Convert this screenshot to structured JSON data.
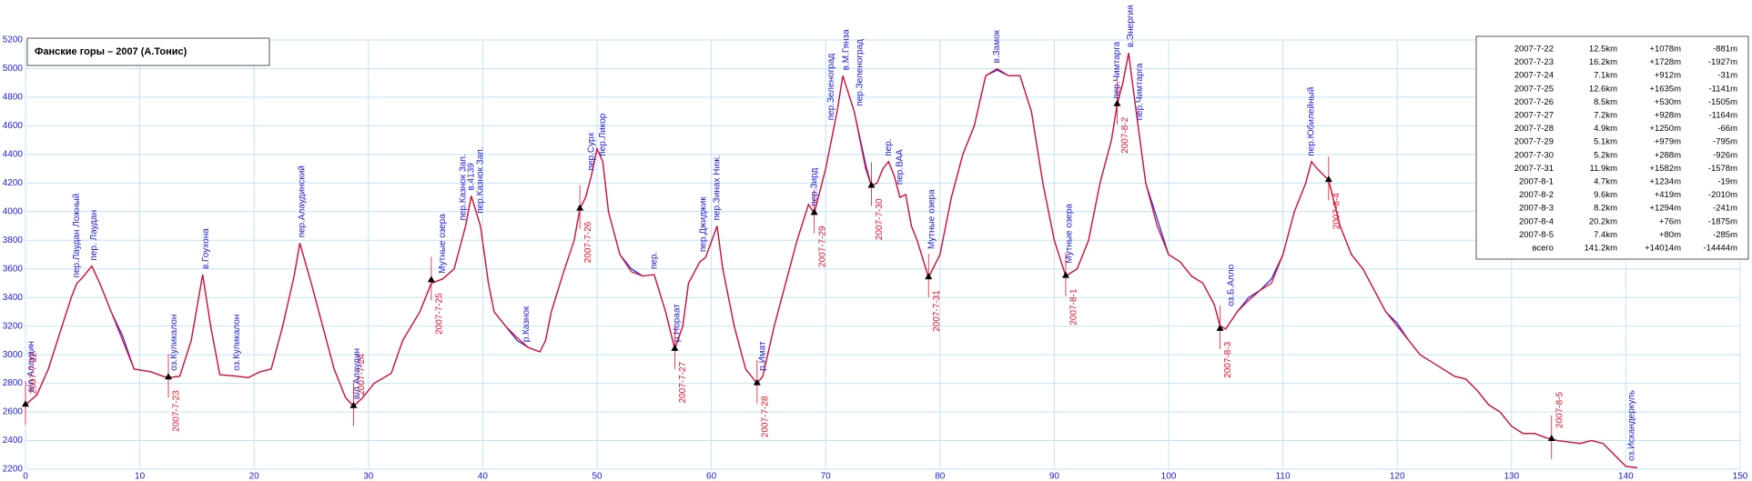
{
  "chart_data": {
    "type": "line",
    "title": "Фанские горы – 2007 (А.Тонис)",
    "x": [
      0,
      1,
      2,
      3,
      4,
      4.5,
      5,
      5.8,
      6.5,
      7.5,
      8.5,
      9.5,
      11,
      12,
      12.5,
      13.5,
      14.5,
      15.5,
      16.2,
      17,
      18.5,
      19.5,
      20.5,
      21.5,
      22.5,
      23.5,
      24,
      25,
      26,
      27,
      28,
      28.7,
      29.5,
      30.5,
      32,
      33,
      34.5,
      35.5,
      36.5,
      37.5,
      38.5,
      39,
      39.8,
      40.5,
      41,
      42,
      43,
      44,
      45,
      45.5,
      46,
      47,
      48,
      48.5,
      49,
      49.5,
      50,
      50.5,
      51,
      52,
      53,
      54,
      55,
      56,
      56.8,
      57.5,
      58,
      59,
      59.5,
      60.5,
      61,
      62,
      63,
      64,
      64.5,
      65.5,
      66.5,
      67.5,
      68.5,
      69,
      70,
      71,
      71.5,
      72.5,
      73.5,
      74,
      74.5,
      75,
      75.5,
      76,
      76.5,
      77,
      77.5,
      78,
      79,
      80,
      81,
      82,
      83,
      84,
      85,
      86,
      87,
      88,
      89,
      90,
      91,
      92,
      93,
      94,
      95,
      95.5,
      96,
      96.5,
      97,
      97.5,
      98,
      99,
      100,
      101,
      102,
      103,
      104,
      104.5,
      105,
      106,
      107,
      108,
      109,
      110,
      111,
      112,
      112.5,
      113,
      114,
      115,
      116,
      117,
      118,
      119,
      120,
      121,
      122,
      123,
      124,
      125,
      126,
      127,
      128,
      129,
      130,
      131,
      132,
      133,
      134,
      135,
      136,
      137,
      138,
      139,
      140,
      141
    ],
    "series": [
      {
        "color": "#2a2ae0",
        "values": [
          2650,
          2720,
          2900,
          3150,
          3400,
          3500,
          3540,
          3620,
          3500,
          3300,
          3130,
          2900,
          2880,
          2850,
          2840,
          2850,
          3100,
          3560,
          3200,
          2860,
          2850,
          2840,
          2880,
          2900,
          3200,
          3550,
          3780,
          3500,
          3200,
          2900,
          2700,
          2640,
          2700,
          2800,
          2870,
          3100,
          3300,
          3500,
          3530,
          3600,
          3900,
          4110,
          3900,
          3500,
          3300,
          3200,
          3100,
          3050,
          3020,
          3100,
          3300,
          3560,
          3800,
          4020,
          4100,
          4250,
          4440,
          4350,
          4000,
          3700,
          3600,
          3550,
          3560,
          3300,
          3040,
          3200,
          3500,
          3650,
          3680,
          3900,
          3600,
          3200,
          2900,
          2800,
          2850,
          3200,
          3500,
          3800,
          4050,
          3990,
          4300,
          4700,
          4950,
          4700,
          4330,
          4180,
          4200,
          4300,
          4350,
          4250,
          4100,
          4120,
          3900,
          3800,
          3540,
          3700,
          4100,
          4400,
          4600,
          4950,
          4990,
          4950,
          4950,
          4700,
          4200,
          3800,
          3550,
          3600,
          3800,
          4200,
          4500,
          4750,
          4900,
          5110,
          4800,
          4500,
          4200,
          3950,
          3700,
          3650,
          3550,
          3500,
          3350,
          3200,
          3180,
          3300,
          3400,
          3450,
          3530,
          3700,
          4000,
          4200,
          4350,
          4300,
          4220,
          3900,
          3700,
          3600,
          3450,
          3300,
          3220,
          3100,
          3000,
          2950,
          2900,
          2850,
          2830,
          2750,
          2650,
          2600,
          2500,
          2450,
          2450,
          2420,
          2400,
          2390,
          2380,
          2400,
          2380,
          2300,
          2220,
          2210
        ]
      },
      {
        "color": "#e0102a",
        "values": [
          2650,
          2720,
          2900,
          3150,
          3400,
          3500,
          3540,
          3620,
          3500,
          3300,
          3100,
          2900,
          2880,
          2850,
          2840,
          2850,
          3100,
          3560,
          3200,
          2860,
          2850,
          2840,
          2880,
          2900,
          3200,
          3550,
          3780,
          3500,
          3200,
          2900,
          2700,
          2640,
          2700,
          2800,
          2870,
          3100,
          3300,
          3500,
          3530,
          3600,
          3900,
          4110,
          3900,
          3500,
          3300,
          3200,
          3120,
          3050,
          3020,
          3100,
          3300,
          3560,
          3800,
          4020,
          4100,
          4250,
          4440,
          4350,
          4000,
          3700,
          3580,
          3550,
          3560,
          3300,
          3040,
          3200,
          3500,
          3650,
          3680,
          3900,
          3600,
          3200,
          2900,
          2800,
          2850,
          3200,
          3500,
          3800,
          4050,
          3990,
          4300,
          4700,
          4950,
          4700,
          4300,
          4180,
          4200,
          4300,
          4350,
          4250,
          4100,
          4120,
          3900,
          3800,
          3540,
          3700,
          4100,
          4400,
          4600,
          4950,
          5000,
          4950,
          4950,
          4700,
          4200,
          3800,
          3550,
          3600,
          3800,
          4200,
          4500,
          4750,
          4900,
          5110,
          4800,
          4500,
          4200,
          3900,
          3700,
          3650,
          3550,
          3500,
          3350,
          3200,
          3180,
          3300,
          3380,
          3450,
          3500,
          3700,
          4000,
          4200,
          4350,
          4300,
          4220,
          3900,
          3700,
          3600,
          3450,
          3300,
          3200,
          3100,
          3000,
          2950,
          2900,
          2850,
          2830,
          2750,
          2650,
          2600,
          2500,
          2450,
          2450,
          2420,
          2400,
          2390,
          2380,
          2400,
          2380,
          2300,
          2220,
          2210
        ]
      }
    ],
    "xlim": [
      0,
      150
    ],
    "xticks": [
      0,
      10,
      20,
      30,
      40,
      50,
      60,
      70,
      80,
      90,
      100,
      110,
      120,
      130,
      140,
      150
    ],
    "ylim": [
      2200,
      5200
    ],
    "yticks": [
      2200,
      2400,
      2600,
      2800,
      3000,
      3200,
      3400,
      3600,
      3800,
      4000,
      4200,
      4400,
      4600,
      4800,
      5000,
      5200
    ],
    "grid": true,
    "annotations": [
      {
        "x": 0.5,
        "y": 2700,
        "label": "в/л Алаудин"
      },
      {
        "x": 4.5,
        "y": 3500,
        "label": "пер.Лаудан Ложный"
      },
      {
        "x": 6,
        "y": 3620,
        "label": "пер. Лаудан"
      },
      {
        "x": 13,
        "y": 2850,
        "label": "оз.Куликалон"
      },
      {
        "x": 15.8,
        "y": 3560,
        "label": "в.Гоухона"
      },
      {
        "x": 18.5,
        "y": 2850,
        "label": "оз.Куликалон"
      },
      {
        "x": 24.2,
        "y": 3780,
        "label": "пер.Алаудинский"
      },
      {
        "x": 29,
        "y": 2650,
        "label": "в/л Алаудин"
      },
      {
        "x": 36.5,
        "y": 3530,
        "label": "Мутные озера"
      },
      {
        "x": 38.3,
        "y": 3900,
        "label": "пер.Казнок Зап."
      },
      {
        "x": 39,
        "y": 4110,
        "label": "в.4139"
      },
      {
        "x": 39.8,
        "y": 3950,
        "label": "пер.Казнок Зап."
      },
      {
        "x": 43.8,
        "y": 3050,
        "label": "р.Казнок"
      },
      {
        "x": 49.5,
        "y": 4250,
        "label": "пер.Сурх"
      },
      {
        "x": 50.5,
        "y": 4350,
        "label": "пер.Ликор"
      },
      {
        "x": 55,
        "y": 3560,
        "label": "пер."
      },
      {
        "x": 57,
        "y": 3050,
        "label": "р.Нораат"
      },
      {
        "x": 59.3,
        "y": 3680,
        "label": "пер.Джиджик"
      },
      {
        "x": 60.5,
        "y": 3900,
        "label": "пер.Зинах Ниж."
      },
      {
        "x": 64.5,
        "y": 2850,
        "label": "р.Имат"
      },
      {
        "x": 69,
        "y": 4000,
        "label": "пер.Зирд"
      },
      {
        "x": 70.5,
        "y": 4600,
        "label": "пер.Зеленоград"
      },
      {
        "x": 71.8,
        "y": 4950,
        "label": "в.М.Гянза"
      },
      {
        "x": 73,
        "y": 4700,
        "label": "пер.Зеленоград"
      },
      {
        "x": 75.5,
        "y": 4350,
        "label": "пер."
      },
      {
        "x": 76.5,
        "y": 4150,
        "label": "пер.ВАА"
      },
      {
        "x": 79.3,
        "y": 3700,
        "label": "Мутные озера"
      },
      {
        "x": 85,
        "y": 5000,
        "label": "в.Замок"
      },
      {
        "x": 91.3,
        "y": 3600,
        "label": "Мутные озера"
      },
      {
        "x": 95.5,
        "y": 4750,
        "label": "пер.Чимтарга"
      },
      {
        "x": 96.7,
        "y": 5110,
        "label": "в.Энергия"
      },
      {
        "x": 97.5,
        "y": 4600,
        "label": "пер.Чимтарга"
      },
      {
        "x": 105.5,
        "y": 3300,
        "label": "оз.Б.Алло"
      },
      {
        "x": 112.5,
        "y": 4350,
        "label": "пер.Юбилейный"
      },
      {
        "x": 140.5,
        "y": 2220,
        "label": "оз.Искандеркуль"
      }
    ],
    "day_markers": [
      {
        "x": 0,
        "y": 2650,
        "label": "2007-7-22"
      },
      {
        "x": 12.5,
        "y": 2840,
        "label": "2007-7-23"
      },
      {
        "x": 28.7,
        "y": 2640,
        "label": "2007-7-24"
      },
      {
        "x": 35.5,
        "y": 3520,
        "label": "2007-7-25"
      },
      {
        "x": 48.5,
        "y": 4020,
        "label": "2007-7-26"
      },
      {
        "x": 56.8,
        "y": 3040,
        "label": "2007-7-27"
      },
      {
        "x": 64,
        "y": 2800,
        "label": "2007-7-28"
      },
      {
        "x": 69,
        "y": 3990,
        "label": "2007-7-29"
      },
      {
        "x": 74,
        "y": 4180,
        "label": "2007-7-30"
      },
      {
        "x": 79,
        "y": 3540,
        "label": "2007-7-31"
      },
      {
        "x": 91,
        "y": 3550,
        "label": "2007-8-1"
      },
      {
        "x": 95.5,
        "y": 4750,
        "label": "2007-8-2"
      },
      {
        "x": 104.5,
        "y": 3180,
        "label": "2007-8-3"
      },
      {
        "x": 114,
        "y": 4220,
        "label": "2007-8-4"
      },
      {
        "x": 133.5,
        "y": 2410,
        "label": "2007-8-5"
      }
    ],
    "summary_table": {
      "rows": [
        [
          "2007-7-22",
          "12.5km",
          "+1078m",
          "-881m"
        ],
        [
          "2007-7-23",
          "16.2km",
          "+1728m",
          "-1927m"
        ],
        [
          "2007-7-24",
          "7.1km",
          "+912m",
          "-31m"
        ],
        [
          "2007-7-25",
          "12.6km",
          "+1635m",
          "-1141m"
        ],
        [
          "2007-7-26",
          "8.5km",
          "+530m",
          "-1505m"
        ],
        [
          "2007-7-27",
          "7.2km",
          "+928m",
          "-1164m"
        ],
        [
          "2007-7-28",
          "4.9km",
          "+1250m",
          "-66m"
        ],
        [
          "2007-7-29",
          "5.1km",
          "+979m",
          "-795m"
        ],
        [
          "2007-7-30",
          "5.2km",
          "+288m",
          "-926m"
        ],
        [
          "2007-7-31",
          "11.9km",
          "+1582m",
          "-1578m"
        ],
        [
          "2007-8-1",
          "4.7km",
          "+1234m",
          "-19m"
        ],
        [
          "2007-8-2",
          "9.6km",
          "+419m",
          "-2010m"
        ],
        [
          "2007-8-3",
          "8.2km",
          "+1294m",
          "-241m"
        ],
        [
          "2007-8-4",
          "20.2km",
          "+76m",
          "-1875m"
        ],
        [
          "2007-8-5",
          "7.4km",
          "+80m",
          "-285m"
        ],
        [
          "всего",
          "141.2km",
          "+14014m",
          "-14444m"
        ]
      ]
    }
  }
}
